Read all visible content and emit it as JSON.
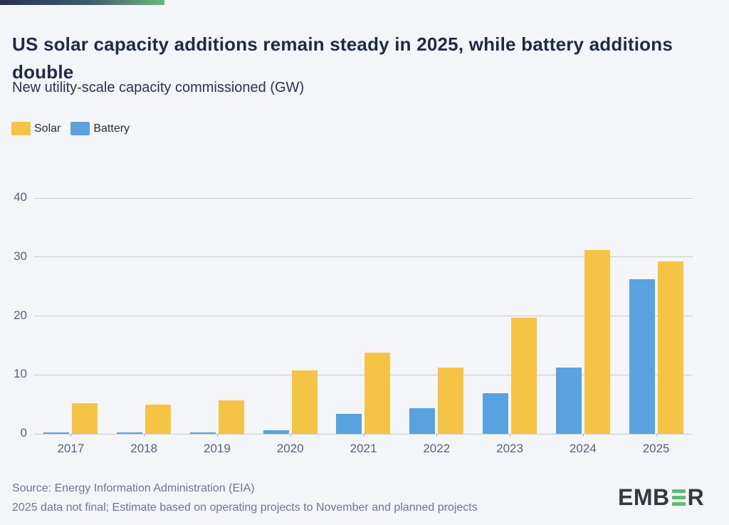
{
  "accent_bar": {
    "gradient_from": "#2A2F55",
    "gradient_to": "#68B87B"
  },
  "header": {
    "title": "US solar capacity additions remain steady in 2025, while battery additions double",
    "subtitle": "New utility-scale capacity commissioned (GW)"
  },
  "legend": {
    "items": [
      {
        "label": "Solar",
        "color": "#F6C445"
      },
      {
        "label": "Battery",
        "color": "#58A2DF"
      }
    ]
  },
  "chart_data": {
    "type": "bar",
    "title": "US solar capacity additions remain steady in 2025, while battery additions double",
    "subtitle": "New utility-scale capacity commissioned (GW)",
    "categories": [
      "2017",
      "2018",
      "2019",
      "2020",
      "2021",
      "2022",
      "2023",
      "2024",
      "2025"
    ],
    "series": [
      {
        "name": "Battery",
        "color": "#58A2DF",
        "values": [
          0.2,
          0.2,
          0.3,
          0.6,
          3.4,
          4.3,
          6.9,
          11.3,
          26.2
        ]
      },
      {
        "name": "Solar",
        "color": "#F6C445",
        "values": [
          5.2,
          4.9,
          5.7,
          10.8,
          13.8,
          11.3,
          19.7,
          31.2,
          29.2
        ]
      }
    ],
    "xlabel": "",
    "ylabel": "GW",
    "ylim": [
      0,
      40
    ],
    "yticks": [
      0,
      10,
      20,
      30,
      40
    ],
    "grid": true,
    "legend_position": "top-left",
    "bar_order_note": "Battery bar drawn left of Solar bar in each year group"
  },
  "footer": {
    "source_line1": "Source: Energy Information Administration (EIA)",
    "source_line2": "2025 data not final; Estimate based on operating projects to November and planned projects",
    "logo": {
      "left_text": "EMB",
      "green_letter": "E",
      "right_text": "R"
    }
  },
  "colors": {
    "background": "#F3F5F9",
    "title_text": "#1F2A46",
    "axis_text": "#56617A",
    "gridline": "#C7CBD7",
    "solar": "#F6C445",
    "battery": "#58A2DF",
    "source_text": "#6F7790",
    "logo_dark": "#35383E",
    "logo_green": "#5ABE72"
  }
}
